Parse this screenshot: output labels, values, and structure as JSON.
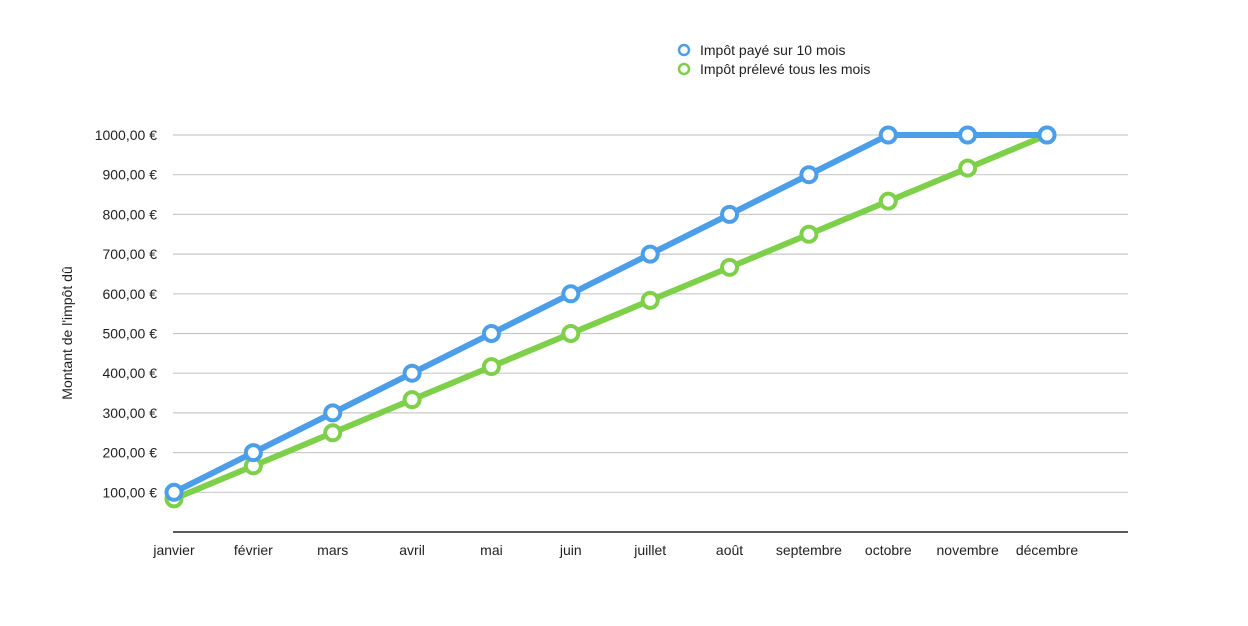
{
  "chart_data": {
    "type": "line",
    "title": "",
    "xlabel": "",
    "ylabel": "Montant de l'impôt dû",
    "categories": [
      "janvier",
      "février",
      "mars",
      "avril",
      "mai",
      "juin",
      "juillet",
      "août",
      "septembre",
      "octobre",
      "novembre",
      "décembre"
    ],
    "y_ticks": [
      100,
      200,
      300,
      400,
      500,
      600,
      700,
      800,
      900,
      1000
    ],
    "y_tick_labels": [
      "100,00 €",
      "200,00 €",
      "300,00 €",
      "400,00 €",
      "500,00 €",
      "600,00 €",
      "700,00 €",
      "800,00 €",
      "900,00 €",
      "1000,00 €"
    ],
    "ylim": [
      0,
      1000
    ],
    "grid": true,
    "legend_position": "top-right",
    "series": [
      {
        "name": "Impôt payé sur 10 mois",
        "color": "#4c9ee9",
        "values": [
          100,
          200,
          300,
          400,
          500,
          600,
          700,
          800,
          900,
          1000,
          1000,
          1000
        ]
      },
      {
        "name": "Impôt prélevé tous les mois",
        "color": "#7ecf4a",
        "values": [
          83.33,
          166.67,
          250,
          333.33,
          416.67,
          500,
          583.33,
          666.67,
          750,
          833.33,
          916.67,
          1000
        ]
      }
    ]
  }
}
